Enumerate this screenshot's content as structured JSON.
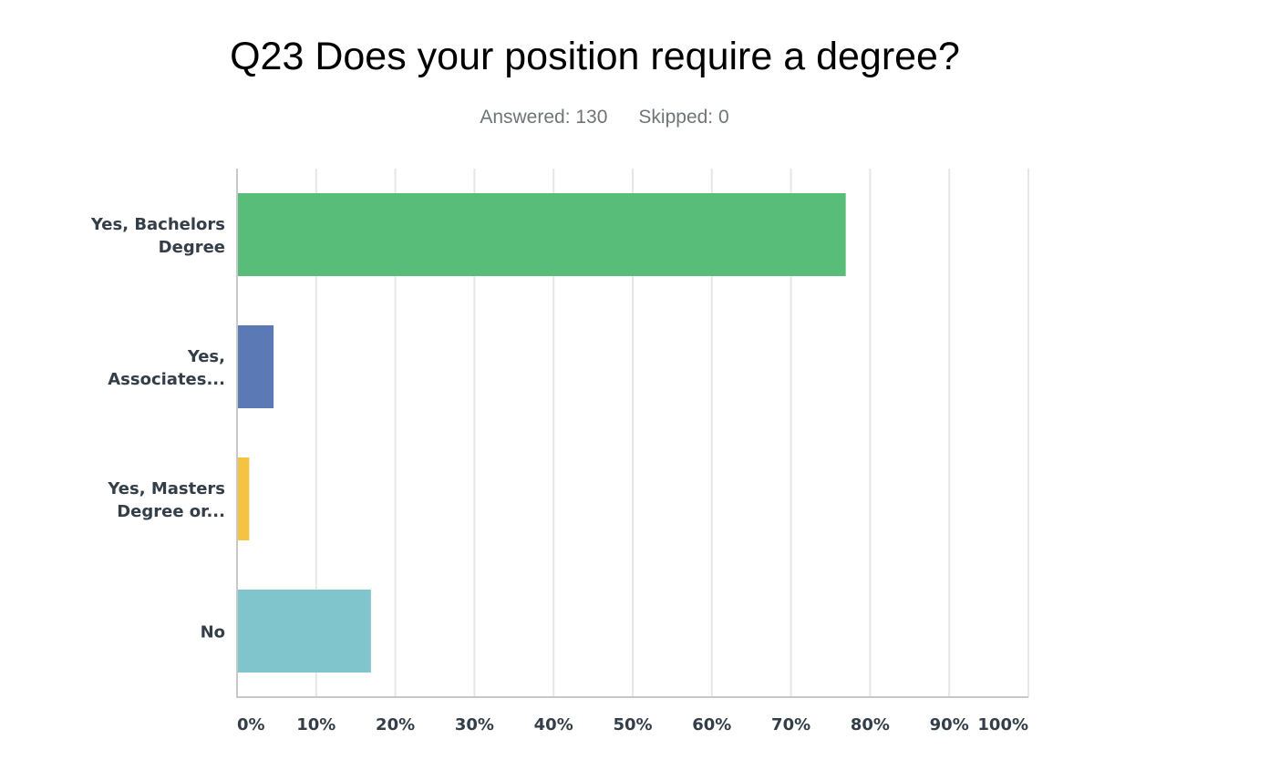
{
  "title": "Q23 Does your position require a degree?",
  "answered": "Answered: 130",
  "skipped": "Skipped: 0",
  "chart_data": {
    "type": "bar",
    "orientation": "horizontal",
    "categories": [
      [
        "Yes, Bachelors",
        "Degree"
      ],
      [
        "Yes,",
        "Associates..."
      ],
      [
        "Yes, Masters",
        "Degree or..."
      ],
      [
        "No"
      ]
    ],
    "values": [
      76.92,
      4.62,
      1.54,
      16.92
    ],
    "colors": [
      "#57bd79",
      "#5b79b4",
      "#f5c242",
      "#80c5cb"
    ],
    "xticks": [
      "0%",
      "10%",
      "20%",
      "30%",
      "40%",
      "50%",
      "60%",
      "70%",
      "80%",
      "90%",
      "100%"
    ],
    "xlim": [
      0,
      100
    ],
    "grid": true,
    "xlabel": "",
    "ylabel": ""
  }
}
